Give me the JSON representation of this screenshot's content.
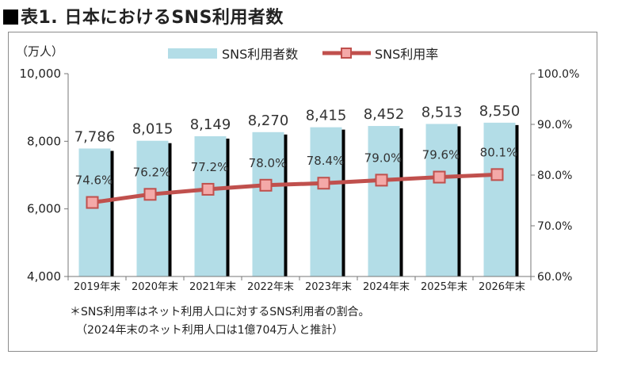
{
  "page": {
    "title": "表1. 日本におけるSNS利用者数"
  },
  "chart_data": {
    "type": "bar+line",
    "categories": [
      "2019年末",
      "2020年末",
      "2021年末",
      "2022年末",
      "2023年末",
      "2024年末",
      "2025年末",
      "2026年末"
    ],
    "series": [
      {
        "name": "SNS利用者数",
        "type": "bar",
        "axis": "left",
        "color": "#b3dde7",
        "values": [
          7786,
          8015,
          8149,
          8270,
          8415,
          8452,
          8513,
          8550
        ]
      },
      {
        "name": "SNS利用率",
        "type": "line",
        "axis": "right",
        "color": "#c0504d",
        "marker_color": "#f4a9a8",
        "values": [
          74.6,
          76.2,
          77.2,
          78.0,
          78.4,
          79.0,
          79.6,
          80.1
        ]
      }
    ],
    "bar_labels": [
      "7,786",
      "8,015",
      "8,149",
      "8,270",
      "8,415",
      "8,452",
      "8,513",
      "8,550"
    ],
    "line_labels": [
      "74.6%",
      "76.2%",
      "77.2%",
      "78.0%",
      "78.4%",
      "79.0%",
      "79.6%",
      "80.1%"
    ],
    "left_axis": {
      "unit": "（万人）",
      "ylim": [
        4000,
        10000
      ],
      "ticks": [
        4000,
        6000,
        8000,
        10000
      ],
      "tick_labels": [
        "4,000",
        "6,000",
        "8,000",
        "10,000"
      ]
    },
    "right_axis": {
      "ylim": [
        60,
        100
      ],
      "ticks": [
        60,
        70,
        80,
        90,
        100
      ],
      "tick_labels": [
        "60.0%",
        "70.0%",
        "80.0%",
        "90.0%",
        "100.0%"
      ]
    },
    "legend": {
      "placement": "top",
      "bar_label": "SNS利用者数",
      "line_label": "SNS利用率"
    },
    "grid": false
  },
  "notes": {
    "line1": "＊SNS利用率はネット利用人口に対するSNS利用者の割合。",
    "line2": "（2024年末のネット利用人口は1億704万人と推計）"
  }
}
